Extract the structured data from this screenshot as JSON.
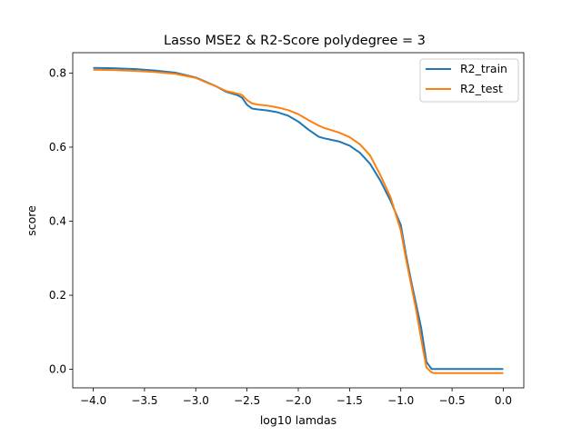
{
  "chart_data": {
    "type": "line",
    "title": "Lasso MSE2 & R2-Score polydegree = 3",
    "xlabel": "log10 lamdas",
    "ylabel": "score",
    "xlim": [
      -4.2,
      0.2
    ],
    "ylim": [
      -0.05,
      0.855
    ],
    "xticks": [
      -4.0,
      -3.5,
      -3.0,
      -2.5,
      -2.0,
      -1.5,
      -1.0,
      -0.5,
      0.0
    ],
    "xtick_labels": [
      "−4.0",
      "−3.5",
      "−3.0",
      "−2.5",
      "−2.0",
      "−1.5",
      "−1.0",
      "−0.5",
      "0.0"
    ],
    "yticks": [
      0.0,
      0.2,
      0.4,
      0.6,
      0.8
    ],
    "ytick_labels": [
      "0.0",
      "0.2",
      "0.4",
      "0.6",
      "0.8"
    ],
    "grid": false,
    "legend_position": "top-right",
    "series": [
      {
        "name": "R2_train",
        "color": "#1f77b4",
        "x": [
          -4.0,
          -3.8,
          -3.6,
          -3.4,
          -3.2,
          -3.0,
          -2.9,
          -2.8,
          -2.7,
          -2.6,
          -2.55,
          -2.5,
          -2.45,
          -2.4,
          -2.3,
          -2.2,
          -2.1,
          -2.0,
          -1.9,
          -1.8,
          -1.75,
          -1.7,
          -1.6,
          -1.5,
          -1.4,
          -1.3,
          -1.2,
          -1.1,
          -1.0,
          -0.95,
          -0.9,
          -0.85,
          -0.8,
          -0.75,
          -0.7,
          -0.6,
          -0.5,
          -0.4,
          -0.2,
          0.0
        ],
        "y": [
          0.814,
          0.813,
          0.811,
          0.807,
          0.801,
          0.788,
          0.776,
          0.764,
          0.749,
          0.741,
          0.734,
          0.714,
          0.704,
          0.702,
          0.699,
          0.694,
          0.685,
          0.669,
          0.647,
          0.628,
          0.624,
          0.621,
          0.615,
          0.604,
          0.585,
          0.555,
          0.51,
          0.455,
          0.39,
          0.31,
          0.24,
          0.175,
          0.11,
          0.02,
          0.001,
          0.001,
          0.001,
          0.001,
          0.001,
          0.001
        ]
      },
      {
        "name": "R2_test",
        "color": "#ff7f0e",
        "x": [
          -4.0,
          -3.8,
          -3.6,
          -3.4,
          -3.2,
          -3.0,
          -2.9,
          -2.8,
          -2.7,
          -2.6,
          -2.55,
          -2.5,
          -2.45,
          -2.4,
          -2.3,
          -2.2,
          -2.1,
          -2.0,
          -1.9,
          -1.8,
          -1.75,
          -1.7,
          -1.6,
          -1.5,
          -1.4,
          -1.3,
          -1.2,
          -1.1,
          -1.0,
          -0.95,
          -0.9,
          -0.85,
          -0.8,
          -0.75,
          -0.7,
          -0.68,
          -0.6,
          -0.5,
          -0.4,
          -0.2,
          0.0
        ],
        "y": [
          0.809,
          0.808,
          0.806,
          0.803,
          0.798,
          0.787,
          0.775,
          0.764,
          0.751,
          0.745,
          0.741,
          0.727,
          0.718,
          0.715,
          0.712,
          0.707,
          0.7,
          0.689,
          0.673,
          0.658,
          0.652,
          0.648,
          0.639,
          0.627,
          0.608,
          0.578,
          0.525,
          0.465,
          0.375,
          0.3,
          0.23,
          0.16,
          0.08,
          0.005,
          -0.008,
          -0.01,
          -0.01,
          -0.01,
          -0.01,
          -0.01,
          -0.01
        ]
      }
    ]
  }
}
